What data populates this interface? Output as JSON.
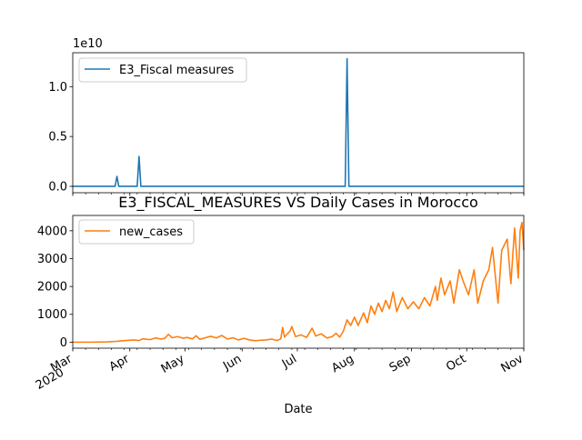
{
  "chart_data": [
    {
      "type": "line",
      "title": "",
      "xlabel": "",
      "ylabel": "",
      "y_offset_label": "1e10",
      "y_ticks": [
        {
          "v": 0.0,
          "label": "0.0"
        },
        {
          "v": 0.5,
          "label": "0.5"
        },
        {
          "v": 1.0,
          "label": "1.0"
        }
      ],
      "ylim": [
        -0.064,
        1.34
      ],
      "legend": "upper left",
      "grid": false,
      "series": [
        {
          "name": "E3_Fiscal measures",
          "color": "#1f77b4",
          "unit_scale": "1e10",
          "points": [
            [
              "2020-03-01",
              0
            ],
            [
              "2020-03-24",
              0
            ],
            [
              "2020-03-25",
              0.1
            ],
            [
              "2020-03-26",
              0
            ],
            [
              "2020-04-05",
              0
            ],
            [
              "2020-04-06",
              0.3
            ],
            [
              "2020-04-07",
              0
            ],
            [
              "2020-07-27",
              0
            ],
            [
              "2020-07-28",
              1.28
            ],
            [
              "2020-07-29",
              0
            ],
            [
              "2020-11-01",
              0
            ]
          ]
        }
      ]
    },
    {
      "type": "line",
      "title": "E3_FISCAL_MEASURES VS Daily Cases in Morocco",
      "xlabel": "Date",
      "ylabel": "",
      "y_ticks": [
        {
          "v": 0,
          "label": "0"
        },
        {
          "v": 1000,
          "label": "1000"
        },
        {
          "v": 2000,
          "label": "2000"
        },
        {
          "v": 3000,
          "label": "3000"
        },
        {
          "v": 4000,
          "label": "4000"
        }
      ],
      "ylim": [
        -216,
        4550
      ],
      "x_ticks": [
        {
          "date": "2020-03-01",
          "label": "Mar",
          "label2": "2020"
        },
        {
          "date": "2020-04-01",
          "label": "Apr"
        },
        {
          "date": "2020-05-01",
          "label": "May"
        },
        {
          "date": "2020-06-01",
          "label": "Jun"
        },
        {
          "date": "2020-07-01",
          "label": "Jul"
        },
        {
          "date": "2020-08-01",
          "label": "Aug"
        },
        {
          "date": "2020-09-01",
          "label": "Sep"
        },
        {
          "date": "2020-10-01",
          "label": "Oct"
        },
        {
          "date": "2020-11-01",
          "label": "Nov"
        }
      ],
      "xlim": [
        "2020-03-01",
        "2020-11-01"
      ],
      "legend": "upper left",
      "grid": false,
      "series": [
        {
          "name": "new_cases",
          "color": "#ff7f0e",
          "points": [
            [
              "2020-03-01",
              0
            ],
            [
              "2020-03-10",
              0
            ],
            [
              "2020-03-20",
              10
            ],
            [
              "2020-03-25",
              30
            ],
            [
              "2020-03-30",
              60
            ],
            [
              "2020-04-03",
              80
            ],
            [
              "2020-04-06",
              60
            ],
            [
              "2020-04-08",
              120
            ],
            [
              "2020-04-12",
              90
            ],
            [
              "2020-04-15",
              150
            ],
            [
              "2020-04-18",
              110
            ],
            [
              "2020-04-20",
              140
            ],
            [
              "2020-04-22",
              280
            ],
            [
              "2020-04-24",
              160
            ],
            [
              "2020-04-27",
              200
            ],
            [
              "2020-04-30",
              140
            ],
            [
              "2020-05-02",
              170
            ],
            [
              "2020-05-05",
              120
            ],
            [
              "2020-05-07",
              230
            ],
            [
              "2020-05-09",
              100
            ],
            [
              "2020-05-12",
              160
            ],
            [
              "2020-05-15",
              210
            ],
            [
              "2020-05-18",
              150
            ],
            [
              "2020-05-21",
              240
            ],
            [
              "2020-05-24",
              110
            ],
            [
              "2020-05-27",
              160
            ],
            [
              "2020-05-30",
              80
            ],
            [
              "2020-06-02",
              140
            ],
            [
              "2020-06-05",
              80
            ],
            [
              "2020-06-08",
              50
            ],
            [
              "2020-06-11",
              70
            ],
            [
              "2020-06-14",
              80
            ],
            [
              "2020-06-17",
              110
            ],
            [
              "2020-06-20",
              60
            ],
            [
              "2020-06-22",
              120
            ],
            [
              "2020-06-23",
              530
            ],
            [
              "2020-06-24",
              180
            ],
            [
              "2020-06-27",
              400
            ],
            [
              "2020-06-28",
              560
            ],
            [
              "2020-06-30",
              200
            ],
            [
              "2020-07-03",
              260
            ],
            [
              "2020-07-06",
              170
            ],
            [
              "2020-07-09",
              500
            ],
            [
              "2020-07-11",
              220
            ],
            [
              "2020-07-14",
              300
            ],
            [
              "2020-07-17",
              150
            ],
            [
              "2020-07-20",
              200
            ],
            [
              "2020-07-22",
              320
            ],
            [
              "2020-07-24",
              180
            ],
            [
              "2020-07-26",
              400
            ],
            [
              "2020-07-28",
              800
            ],
            [
              "2020-07-30",
              600
            ],
            [
              "2020-08-01",
              900
            ],
            [
              "2020-08-03",
              600
            ],
            [
              "2020-08-06",
              1050
            ],
            [
              "2020-08-08",
              700
            ],
            [
              "2020-08-10",
              1300
            ],
            [
              "2020-08-12",
              1000
            ],
            [
              "2020-08-14",
              1400
            ],
            [
              "2020-08-16",
              1100
            ],
            [
              "2020-08-18",
              1500
            ],
            [
              "2020-08-20",
              1200
            ],
            [
              "2020-08-22",
              1800
            ],
            [
              "2020-08-24",
              1100
            ],
            [
              "2020-08-27",
              1600
            ],
            [
              "2020-08-30",
              1200
            ],
            [
              "2020-09-02",
              1450
            ],
            [
              "2020-09-05",
              1200
            ],
            [
              "2020-09-08",
              1600
            ],
            [
              "2020-09-11",
              1300
            ],
            [
              "2020-09-14",
              2000
            ],
            [
              "2020-09-15",
              1500
            ],
            [
              "2020-09-17",
              2300
            ],
            [
              "2020-09-19",
              1700
            ],
            [
              "2020-09-22",
              2200
            ],
            [
              "2020-09-24",
              1400
            ],
            [
              "2020-09-27",
              2600
            ],
            [
              "2020-09-29",
              2200
            ],
            [
              "2020-10-02",
              1700
            ],
            [
              "2020-10-05",
              2600
            ],
            [
              "2020-10-07",
              1400
            ],
            [
              "2020-10-10",
              2200
            ],
            [
              "2020-10-13",
              2600
            ],
            [
              "2020-10-15",
              3400
            ],
            [
              "2020-10-18",
              1400
            ],
            [
              "2020-10-20",
              3300
            ],
            [
              "2020-10-23",
              3700
            ],
            [
              "2020-10-25",
              2100
            ],
            [
              "2020-10-27",
              4100
            ],
            [
              "2020-10-29",
              2300
            ],
            [
              "2020-10-30",
              4000
            ],
            [
              "2020-10-31",
              4300
            ],
            [
              "2020-11-01",
              3300
            ]
          ]
        }
      ]
    }
  ]
}
